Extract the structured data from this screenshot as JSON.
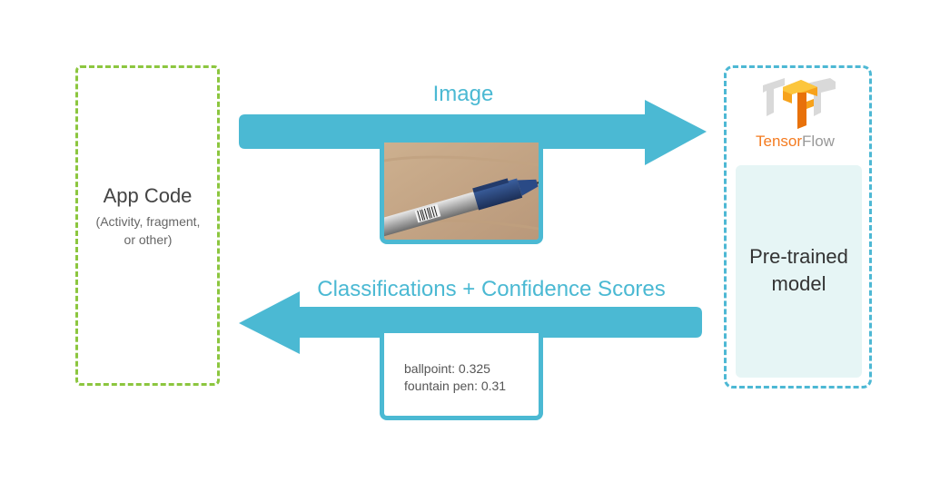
{
  "app_box": {
    "title": "App Code",
    "subtitle_line1": "(Activity, fragment,",
    "subtitle_line2": "or other)"
  },
  "arrows": {
    "image_label": "Image",
    "result_label": "Classifications + Confidence Scores"
  },
  "results": [
    {
      "text": "ballpoint: 0.325"
    },
    {
      "text": "fountain pen: 0.31"
    }
  ],
  "tensorflow": {
    "brand_part1": "Tensor",
    "brand_part2": "Flow",
    "logo": "tensorflow-logo-icon"
  },
  "model": {
    "line1": "Pre-trained",
    "line2": "model"
  },
  "colors": {
    "arrow": "#4bb9d3",
    "app_border": "#8cc63f",
    "tf_border": "#4db8d4",
    "tf_orange": "#f47b20",
    "model_bg": "#e6f5f5"
  }
}
